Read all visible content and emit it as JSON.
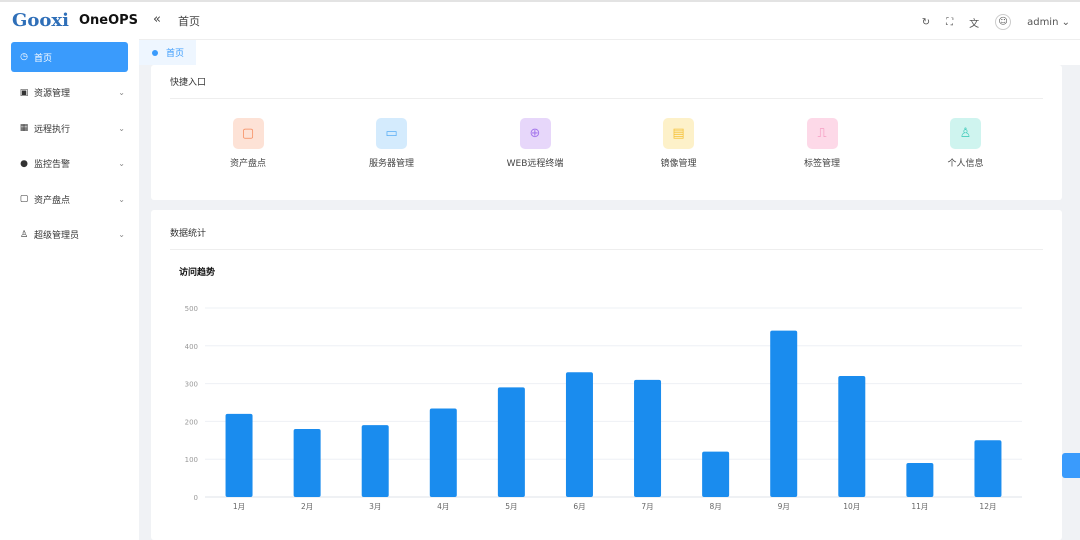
{
  "app": {
    "brand": "Gooxi",
    "name": "OneOPS"
  },
  "sidebar": {
    "items": [
      {
        "label": "首页",
        "icon": "dashboard-icon",
        "active": true
      },
      {
        "label": "资源管理",
        "icon": "box-icon"
      },
      {
        "label": "远程执行",
        "icon": "grid-icon"
      },
      {
        "label": "监控告警",
        "icon": "alert-icon"
      },
      {
        "label": "资产盘点",
        "icon": "chip-icon"
      },
      {
        "label": "超级管理员",
        "icon": "user-icon"
      }
    ]
  },
  "header": {
    "breadcrumb": "首页",
    "user": "admin"
  },
  "tabs": [
    {
      "label": "首页"
    }
  ],
  "quick": {
    "title": "快捷入口",
    "items": [
      {
        "label": "资产盘点",
        "icon": "chip-icon",
        "bg": "#fde2d6",
        "fg": "#f58a5c"
      },
      {
        "label": "服务器管理",
        "icon": "monitor-icon",
        "bg": "#d4ebfd",
        "fg": "#59aef5"
      },
      {
        "label": "WEB远程终端",
        "icon": "crosshair-icon",
        "bg": "#e7d7fa",
        "fg": "#a678ec"
      },
      {
        "label": "镜像管理",
        "icon": "clipboard-icon",
        "bg": "#fdf1c9",
        "fg": "#f5c23a"
      },
      {
        "label": "标签管理",
        "icon": "bookmark-icon",
        "bg": "#fdd9e8",
        "fg": "#f27eb0"
      },
      {
        "label": "个人信息",
        "icon": "person-icon",
        "bg": "#cff4ef",
        "fg": "#47cdbd"
      }
    ]
  },
  "stats": {
    "title": "数据统计"
  },
  "chart_data": {
    "type": "bar",
    "title": "访问趋势",
    "categories": [
      "1月",
      "2月",
      "3月",
      "4月",
      "5月",
      "6月",
      "7月",
      "8月",
      "9月",
      "10月",
      "11月",
      "12月"
    ],
    "values": [
      220,
      180,
      190,
      234,
      290,
      330,
      310,
      120,
      440,
      320,
      90,
      150
    ],
    "yticks": [
      0,
      100,
      200,
      300,
      400,
      500
    ],
    "ylim": [
      0,
      500
    ],
    "grid": true,
    "color": "#1a8cee"
  }
}
